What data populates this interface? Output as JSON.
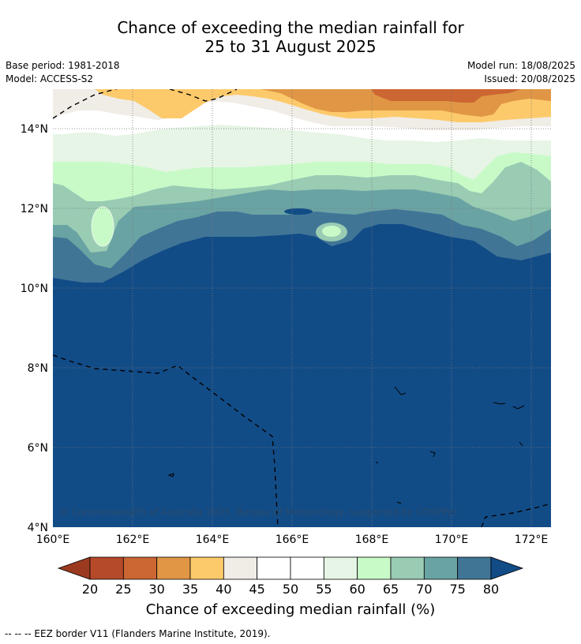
{
  "title_line1": "Chance of exceeding the median rainfall for",
  "title_line2": "25 to 31 August 2025",
  "meta": {
    "base_period": "Base period: 1981-2018",
    "model": "Model: ACCESS-S2",
    "model_run": "Model run: 18/08/2025",
    "issued": "Issued: 20/08/2025"
  },
  "map": {
    "lat_labels": [
      "14°N",
      "12°N",
      "10°N",
      "8°N",
      "6°N",
      "4°N"
    ],
    "lon_labels": [
      "160°E",
      "162°E",
      "164°E",
      "166°E",
      "168°E",
      "170°E",
      "172°E"
    ],
    "copyright": "© Commonwealth of Australia 2025, Bureau of Meteorology, supported by COSPPac"
  },
  "colorbar": {
    "title": "Chance of exceeding median rainfall (%)",
    "ticks": [
      "20",
      "25",
      "30",
      "35",
      "40",
      "45",
      "50",
      "55",
      "60",
      "65",
      "70",
      "75",
      "80"
    ],
    "colors": [
      "#9c3a20",
      "#b54a2a",
      "#cc6633",
      "#e09645",
      "#fdca6b",
      "#f0ece6",
      "#ffffff",
      "#ffffff",
      "#e6f5e6",
      "#c8fac8",
      "#99ccb3",
      "#6aa3a3",
      "#417596",
      "#124c87"
    ]
  },
  "footer": "--  --  -- EEZ border V11 (Flanders Marine Institute, 2019)."
}
